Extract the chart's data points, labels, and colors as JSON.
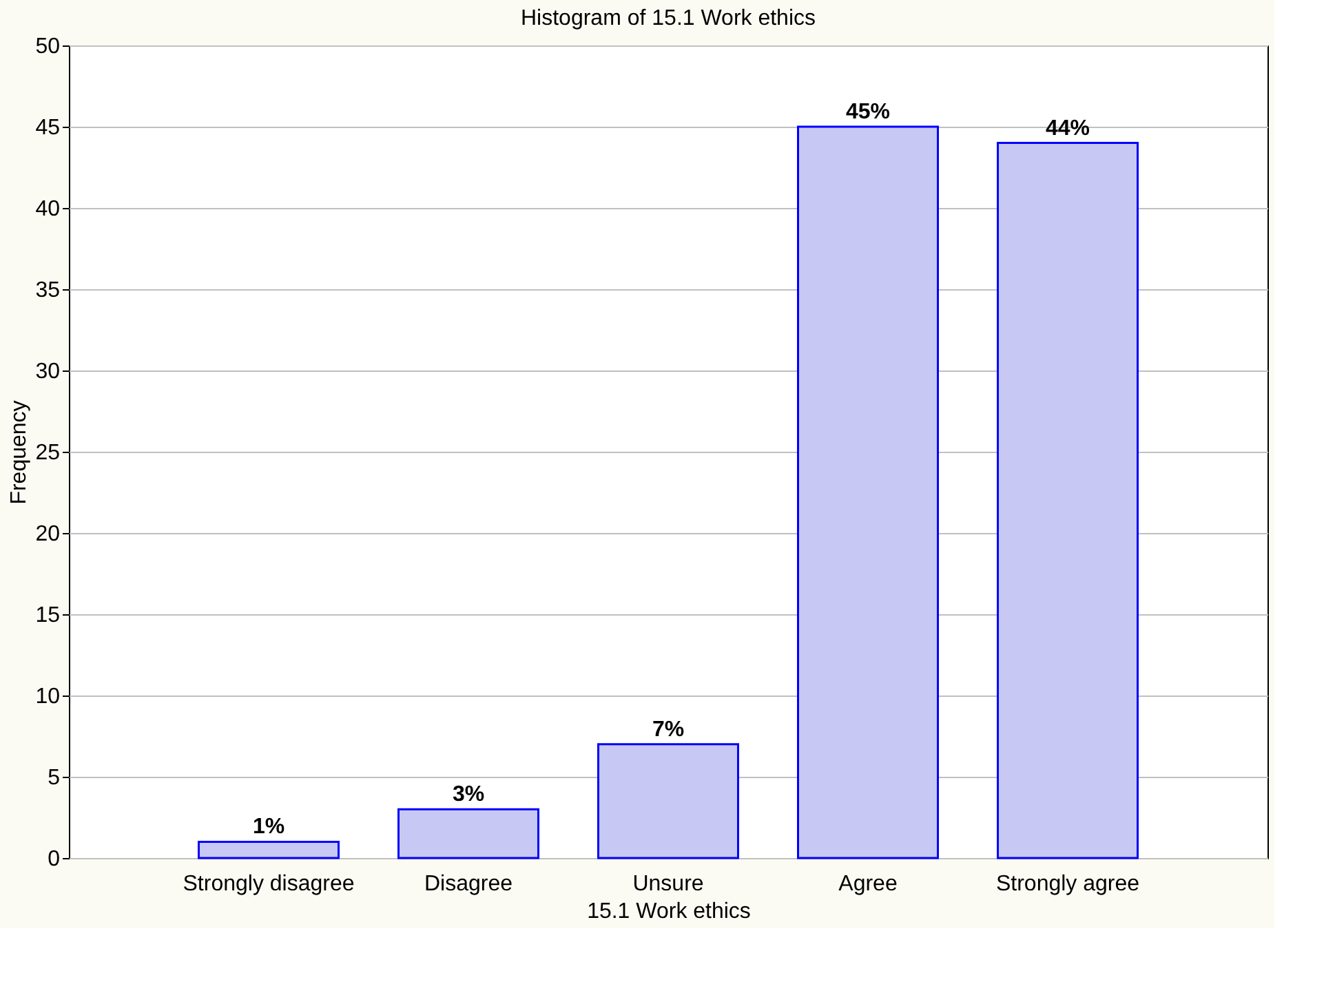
{
  "chart_data": {
    "type": "bar",
    "title": "Histogram of 15.1 Work ethics",
    "xlabel": "15.1 Work ethics",
    "ylabel": "Frequency",
    "categories": [
      "Strongly disagree",
      "Disagree",
      "Unsure",
      "Agree",
      "Strongly agree"
    ],
    "values": [
      1,
      3,
      7,
      45,
      44
    ],
    "value_labels": [
      "1%",
      "3%",
      "7%",
      "45%",
      "44%"
    ],
    "color": "#c8c8f4",
    "ylim": [
      0,
      50
    ],
    "yticks": [
      0,
      5,
      10,
      15,
      20,
      25,
      30,
      35,
      40,
      45,
      50
    ],
    "grid": "y"
  }
}
